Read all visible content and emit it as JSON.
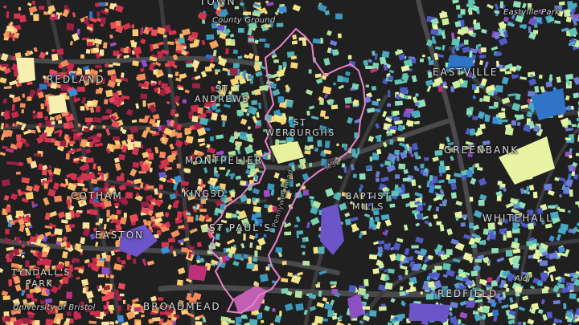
{
  "colors": {
    "background": "#202021",
    "road": "#3c3c3e",
    "road_major": "#4a4a4d",
    "boundary": "#e784c8",
    "boundary_fill": "#c15fb3",
    "palette_west": [
      "#e94b57",
      "#f7a15d",
      "#fcc96f",
      "#d2354e",
      "#f48a5c",
      "#fde39a",
      "#9b2245",
      "#c9294d"
    ],
    "palette_center": [
      "#f0e68a",
      "#b6e2a0",
      "#7ad2b0",
      "#4fb0b8",
      "#fcd27a",
      "#3d96ba"
    ],
    "palette_east": [
      "#8fe0b8",
      "#5fc4b4",
      "#c9ef9f",
      "#49a8c4",
      "#e8f4a2",
      "#6d7ed6",
      "#4e5cc4"
    ],
    "accents": [
      "#6c55c9",
      "#8d4fc4",
      "#3b8fd8",
      "#c0307a",
      "#2f74c7",
      "#a34fc4"
    ]
  },
  "labels": {
    "town": "TOWN",
    "county_ground": "County Ground",
    "eastville_park": "Eastville Park",
    "redland": "REDLAND",
    "st_andrews": "ST ANDREWS",
    "eastville": "EASTVILLE",
    "st_werburghs": "ST WERBURGHS",
    "montpelier": "MONTPELIER",
    "greenbank": "GREENBANK",
    "kingsdown": "KINGSD",
    "cotham": "COTHAM",
    "baptist_mills": "BAPTIST MILLS",
    "st_pauls": "ST PAUL'S",
    "easton": "EASTON",
    "whitehall": "WHITEHALL",
    "tyndalls_park": "TYNDALL'S PARK",
    "university": "University of Bristol",
    "broadmead": "BROADMEAD",
    "redfield": "REDFIELD",
    "road_m32": "M32",
    "road_pennywell": "Pennywell Road",
    "road_aldi": "Aldi"
  }
}
